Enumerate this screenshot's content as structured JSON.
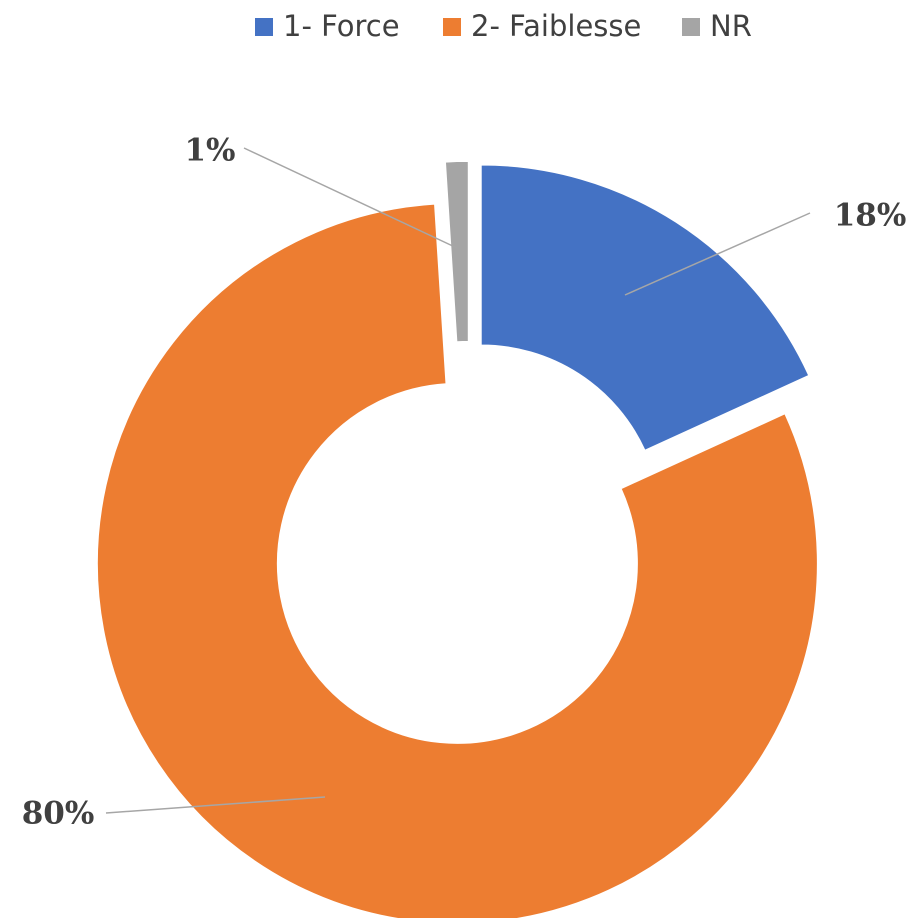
{
  "chart_data": {
    "type": "donut",
    "categories": [
      "1- Force",
      "2- Faiblesse",
      "NR"
    ],
    "values": [
      18,
      80,
      1
    ],
    "value_labels": [
      "18%",
      "80%",
      "1%"
    ],
    "colors": [
      "#4472c4",
      "#ed7d31",
      "#a5a5a5"
    ],
    "legend": "top"
  }
}
